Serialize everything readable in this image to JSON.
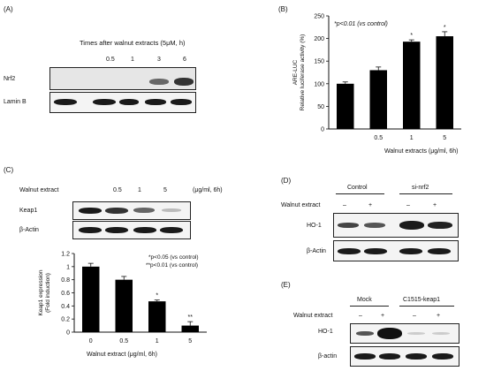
{
  "panelA": {
    "label": "(A)",
    "header": "Times after walnut  extracts (5μM, h)",
    "times": [
      "0.5",
      "1",
      "3",
      "6"
    ],
    "rows": [
      "Nrf2",
      "Lamin B"
    ]
  },
  "panelB": {
    "label": "(B)",
    "note": "*p<0.01 (vs control)",
    "xlabel": "Walnut  extracts (μg/ml, 6h)"
  },
  "panelC": {
    "label": "(C)",
    "header": "Walnut extract",
    "doses": [
      "0.5",
      "1",
      "5"
    ],
    "units": "(μg/ml, 6h)",
    "rows": [
      "Keap1",
      "β-Actin"
    ],
    "note1": "*p<0.05 (vs control)",
    "note2": "**p<0.01 (vs control)",
    "xlabel": "Walnut extract (μg/ml, 6h)"
  },
  "panelD": {
    "label": "(D)",
    "groups": [
      "Control",
      "si-nrf2"
    ],
    "treatment": "Walnut extract",
    "signs": [
      "–",
      "+",
      "–",
      "+"
    ],
    "rows": [
      "HO-1",
      "β-Actin"
    ]
  },
  "panelE": {
    "label": "(E)",
    "groups": [
      "Mock",
      "C1515-keap1"
    ],
    "treatment": "Walnut extract",
    "signs": [
      "–",
      "+",
      "–",
      "+"
    ],
    "rows": [
      "HO-1",
      "β-actin"
    ]
  },
  "chart_data": [
    {
      "id": "panelB",
      "type": "bar",
      "categories": [
        "",
        "0.5",
        "1",
        "5"
      ],
      "values": [
        100,
        130,
        193,
        205
      ],
      "errors": [
        4,
        7,
        4,
        10
      ],
      "significance": [
        "",
        "",
        "*",
        "*"
      ],
      "ylabel_line1": "ARE-LUC",
      "ylabel_line2": "Relative luciferase activity (%)",
      "ylim": [
        0,
        250
      ],
      "yticks": [
        0,
        50,
        100,
        150,
        200,
        250
      ],
      "bar_color": "#000000"
    },
    {
      "id": "panelC",
      "type": "bar",
      "categories": [
        "0",
        "0.5",
        "1",
        "5"
      ],
      "values": [
        1.0,
        0.8,
        0.47,
        0.1
      ],
      "errors": [
        0.05,
        0.05,
        0.02,
        0.06
      ],
      "significance": [
        "",
        "",
        "*",
        "**"
      ],
      "ylabel_line1": "Keap1 expression",
      "ylabel_line2": "(Fold induction)",
      "ylim": [
        0,
        1.2
      ],
      "yticks": [
        0,
        0.2,
        0.4,
        0.6,
        0.8,
        1,
        1.2
      ],
      "bar_color": "#000000"
    }
  ]
}
